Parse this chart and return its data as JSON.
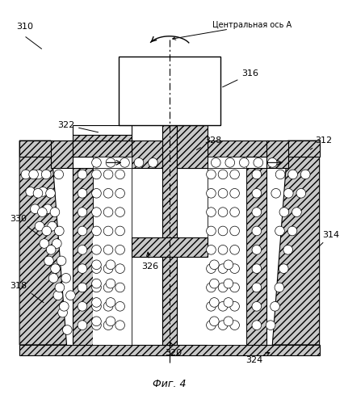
{
  "title": "Фиг. 4",
  "center_axis_label": "Центральная ось А",
  "background_color": "#ffffff"
}
